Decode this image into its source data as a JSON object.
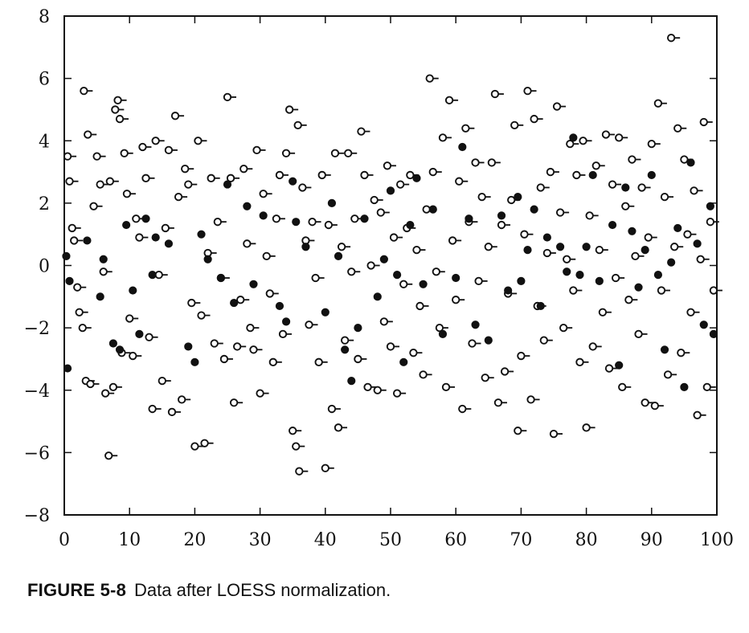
{
  "chart_data": {
    "type": "scatter",
    "title": "",
    "xlabel": "",
    "ylabel": "",
    "xlim": [
      0,
      100
    ],
    "ylim": [
      -8,
      8
    ],
    "x_ticks": [
      0,
      10,
      20,
      30,
      40,
      50,
      60,
      70,
      80,
      90,
      100
    ],
    "y_ticks": [
      -8,
      -6,
      -4,
      -2,
      0,
      2,
      4,
      6,
      8
    ],
    "grid": false,
    "legend": "none",
    "marker_styles": {
      "open": "open circle with short tail",
      "filled": "filled circle"
    },
    "series": [
      {
        "style": "open",
        "points": [
          [
            0.5,
            3.5
          ],
          [
            0.8,
            2.7
          ],
          [
            1.2,
            1.2
          ],
          [
            1.5,
            0.8
          ],
          [
            2,
            -0.7
          ],
          [
            2.3,
            -1.5
          ],
          [
            2.8,
            -2.0
          ],
          [
            3,
            5.6
          ],
          [
            3.3,
            -3.7
          ],
          [
            3.6,
            4.2
          ],
          [
            4,
            -3.8
          ],
          [
            4.5,
            1.9
          ],
          [
            5,
            3.5
          ],
          [
            5.5,
            2.6
          ],
          [
            6,
            -0.2
          ],
          [
            6.3,
            -4.1
          ],
          [
            6.8,
            -6.1
          ],
          [
            7,
            2.7
          ],
          [
            7.5,
            -3.9
          ],
          [
            7.8,
            5.0
          ],
          [
            8.2,
            5.3
          ],
          [
            8.5,
            4.7
          ],
          [
            8.8,
            -2.8
          ],
          [
            9.2,
            3.6
          ],
          [
            9.6,
            2.3
          ],
          [
            10,
            -1.7
          ],
          [
            10.5,
            -2.9
          ],
          [
            11,
            1.5
          ],
          [
            11.5,
            0.9
          ],
          [
            12,
            3.8
          ],
          [
            12.5,
            2.8
          ],
          [
            13,
            -2.3
          ],
          [
            13.5,
            -4.6
          ],
          [
            14,
            4.0
          ],
          [
            14.5,
            -0.3
          ],
          [
            15,
            -3.7
          ],
          [
            15.5,
            1.2
          ],
          [
            16,
            3.7
          ],
          [
            16.5,
            -4.7
          ],
          [
            17,
            4.8
          ],
          [
            17.5,
            2.2
          ],
          [
            18,
            -4.3
          ],
          [
            18.5,
            3.1
          ],
          [
            19,
            2.6
          ],
          [
            19.5,
            -1.2
          ],
          [
            20,
            -5.8
          ],
          [
            20.5,
            4.0
          ],
          [
            21,
            -1.6
          ],
          [
            21.5,
            -5.7
          ],
          [
            22,
            0.4
          ],
          [
            22.5,
            2.8
          ],
          [
            23,
            -2.5
          ],
          [
            23.5,
            1.4
          ],
          [
            24,
            -0.4
          ],
          [
            24.5,
            -3.0
          ],
          [
            25,
            5.4
          ],
          [
            25.5,
            2.8
          ],
          [
            26,
            -4.4
          ],
          [
            26.5,
            -2.6
          ],
          [
            27,
            -1.1
          ],
          [
            27.5,
            3.1
          ],
          [
            28,
            0.7
          ],
          [
            28.5,
            -2.0
          ],
          [
            29,
            -2.7
          ],
          [
            29.5,
            3.7
          ],
          [
            30,
            -4.1
          ],
          [
            30.5,
            2.3
          ],
          [
            31,
            0.3
          ],
          [
            31.5,
            -0.9
          ],
          [
            32,
            -3.1
          ],
          [
            32.5,
            1.5
          ],
          [
            33,
            2.9
          ],
          [
            33.5,
            -2.2
          ],
          [
            34,
            3.6
          ],
          [
            34.5,
            5.0
          ],
          [
            35,
            -5.3
          ],
          [
            35.5,
            -5.8
          ],
          [
            35.8,
            4.5
          ],
          [
            36,
            -6.6
          ],
          [
            36.5,
            2.5
          ],
          [
            37,
            0.8
          ],
          [
            37.5,
            -1.9
          ],
          [
            38,
            1.4
          ],
          [
            38.5,
            -0.4
          ],
          [
            39,
            -3.1
          ],
          [
            39.5,
            2.9
          ],
          [
            40,
            -6.5
          ],
          [
            40.5,
            1.3
          ],
          [
            41,
            -4.6
          ],
          [
            41.5,
            3.6
          ],
          [
            42,
            -5.2
          ],
          [
            42.5,
            0.6
          ],
          [
            43,
            -2.4
          ],
          [
            43.5,
            3.6
          ],
          [
            44,
            -0.2
          ],
          [
            44.5,
            1.5
          ],
          [
            45,
            -3.0
          ],
          [
            45.5,
            4.3
          ],
          [
            46,
            2.9
          ],
          [
            46.5,
            -3.9
          ],
          [
            47,
            0.0
          ],
          [
            47.5,
            2.1
          ],
          [
            48,
            -4.0
          ],
          [
            48.5,
            1.7
          ],
          [
            49,
            -1.8
          ],
          [
            49.5,
            3.2
          ],
          [
            50,
            -2.6
          ],
          [
            50.5,
            0.9
          ],
          [
            51,
            -4.1
          ],
          [
            51.5,
            2.6
          ],
          [
            52,
            -0.6
          ],
          [
            52.5,
            1.2
          ],
          [
            53,
            2.9
          ],
          [
            53.5,
            -2.8
          ],
          [
            54,
            0.5
          ],
          [
            54.5,
            -1.3
          ],
          [
            55,
            -3.5
          ],
          [
            55.5,
            1.8
          ],
          [
            56,
            6.0
          ],
          [
            56.5,
            3.0
          ],
          [
            57,
            -0.2
          ],
          [
            57.5,
            -2.0
          ],
          [
            58,
            4.1
          ],
          [
            58.5,
            -3.9
          ],
          [
            59,
            5.3
          ],
          [
            59.5,
            0.8
          ],
          [
            60,
            -1.1
          ],
          [
            60.5,
            2.7
          ],
          [
            61,
            -4.6
          ],
          [
            61.5,
            4.4
          ],
          [
            62,
            1.4
          ],
          [
            62.5,
            -2.5
          ],
          [
            63,
            3.3
          ],
          [
            63.5,
            -0.5
          ],
          [
            64,
            2.2
          ],
          [
            64.5,
            -3.6
          ],
          [
            65,
            0.6
          ],
          [
            65.5,
            3.3
          ],
          [
            66,
            5.5
          ],
          [
            66.5,
            -4.4
          ],
          [
            67,
            1.3
          ],
          [
            67.5,
            -3.4
          ],
          [
            68,
            -0.9
          ],
          [
            68.5,
            2.1
          ],
          [
            69,
            4.5
          ],
          [
            69.5,
            -5.3
          ],
          [
            70,
            -2.9
          ],
          [
            70.5,
            1.0
          ],
          [
            71,
            5.6
          ],
          [
            71.5,
            -4.3
          ],
          [
            72,
            4.7
          ],
          [
            72.5,
            -1.3
          ],
          [
            73,
            2.5
          ],
          [
            73.5,
            -2.4
          ],
          [
            74,
            0.4
          ],
          [
            74.5,
            3.0
          ],
          [
            75,
            -5.4
          ],
          [
            75.5,
            5.1
          ],
          [
            76,
            1.7
          ],
          [
            76.5,
            -2.0
          ],
          [
            77,
            0.2
          ],
          [
            77.5,
            3.9
          ],
          [
            78,
            -0.8
          ],
          [
            78.5,
            2.9
          ],
          [
            79,
            -3.1
          ],
          [
            79.5,
            4.0
          ],
          [
            80,
            -5.2
          ],
          [
            80.5,
            1.6
          ],
          [
            81,
            -2.6
          ],
          [
            81.5,
            3.2
          ],
          [
            82,
            0.5
          ],
          [
            82.5,
            -1.5
          ],
          [
            83,
            4.2
          ],
          [
            83.5,
            -3.3
          ],
          [
            84,
            2.6
          ],
          [
            84.5,
            -0.4
          ],
          [
            85,
            4.1
          ],
          [
            85.5,
            -3.9
          ],
          [
            86,
            1.9
          ],
          [
            86.5,
            -1.1
          ],
          [
            87,
            3.4
          ],
          [
            87.5,
            0.3
          ],
          [
            88,
            -2.2
          ],
          [
            88.5,
            2.5
          ],
          [
            89,
            -4.4
          ],
          [
            89.5,
            0.9
          ],
          [
            90,
            3.9
          ],
          [
            90.5,
            -4.5
          ],
          [
            91,
            5.2
          ],
          [
            91.5,
            -0.8
          ],
          [
            92,
            2.2
          ],
          [
            92.5,
            -3.5
          ],
          [
            93,
            7.3
          ],
          [
            93.5,
            0.6
          ],
          [
            94,
            4.4
          ],
          [
            94.5,
            -2.8
          ],
          [
            95,
            3.4
          ],
          [
            95.5,
            1.0
          ],
          [
            96,
            -1.5
          ],
          [
            96.5,
            2.4
          ],
          [
            97,
            -4.8
          ],
          [
            97.5,
            0.2
          ],
          [
            98,
            4.6
          ],
          [
            98.5,
            -3.9
          ],
          [
            99,
            1.4
          ],
          [
            99.5,
            -0.8
          ]
        ]
      },
      {
        "style": "filled",
        "points": [
          [
            0.3,
            0.3
          ],
          [
            0.5,
            -3.3
          ],
          [
            0.8,
            -0.5
          ],
          [
            3.5,
            0.8
          ],
          [
            5.5,
            -1.0
          ],
          [
            6,
            0.2
          ],
          [
            7.5,
            -2.5
          ],
          [
            8.5,
            -2.7
          ],
          [
            9.5,
            1.3
          ],
          [
            10.5,
            -0.8
          ],
          [
            11.5,
            -2.2
          ],
          [
            12.5,
            1.5
          ],
          [
            13.5,
            -0.3
          ],
          [
            14,
            0.9
          ],
          [
            16,
            0.7
          ],
          [
            19,
            -2.6
          ],
          [
            20,
            -3.1
          ],
          [
            21,
            1.0
          ],
          [
            22,
            0.2
          ],
          [
            24,
            -0.4
          ],
          [
            25,
            2.6
          ],
          [
            26,
            -1.2
          ],
          [
            28,
            1.9
          ],
          [
            29,
            -0.6
          ],
          [
            30.5,
            1.6
          ],
          [
            33,
            -1.3
          ],
          [
            34,
            -1.8
          ],
          [
            35,
            2.7
          ],
          [
            35.5,
            1.4
          ],
          [
            37,
            0.6
          ],
          [
            40,
            -1.5
          ],
          [
            41,
            2.0
          ],
          [
            42,
            0.3
          ],
          [
            43,
            -2.7
          ],
          [
            44,
            -3.7
          ],
          [
            45,
            -2.0
          ],
          [
            46,
            1.5
          ],
          [
            48,
            -1.0
          ],
          [
            49,
            0.2
          ],
          [
            50,
            2.4
          ],
          [
            51,
            -0.3
          ],
          [
            52,
            -3.1
          ],
          [
            53,
            1.3
          ],
          [
            54,
            2.8
          ],
          [
            55,
            -0.6
          ],
          [
            56.5,
            1.8
          ],
          [
            58,
            -2.2
          ],
          [
            60,
            -0.4
          ],
          [
            61,
            3.8
          ],
          [
            62,
            1.5
          ],
          [
            63,
            -1.9
          ],
          [
            65,
            -2.4
          ],
          [
            67,
            1.6
          ],
          [
            68,
            -0.8
          ],
          [
            69.5,
            2.2
          ],
          [
            70,
            -0.5
          ],
          [
            71,
            0.5
          ],
          [
            72,
            1.8
          ],
          [
            73,
            -1.3
          ],
          [
            74,
            0.9
          ],
          [
            76,
            0.6
          ],
          [
            77,
            -0.2
          ],
          [
            78,
            4.1
          ],
          [
            79,
            -0.3
          ],
          [
            80,
            0.6
          ],
          [
            81,
            2.9
          ],
          [
            82,
            -0.5
          ],
          [
            84,
            1.3
          ],
          [
            85,
            -3.2
          ],
          [
            86,
            2.5
          ],
          [
            87,
            1.1
          ],
          [
            88,
            -0.7
          ],
          [
            89,
            0.5
          ],
          [
            90,
            2.9
          ],
          [
            91,
            -0.3
          ],
          [
            92,
            -2.7
          ],
          [
            93,
            0.1
          ],
          [
            94,
            1.2
          ],
          [
            95,
            -3.9
          ],
          [
            96,
            3.3
          ],
          [
            97,
            0.7
          ],
          [
            98,
            -1.9
          ],
          [
            99,
            1.9
          ],
          [
            99.5,
            -2.2
          ]
        ]
      }
    ]
  },
  "caption": {
    "figure_label": "FIGURE 5-8",
    "text": "Data after LOESS normalization."
  }
}
